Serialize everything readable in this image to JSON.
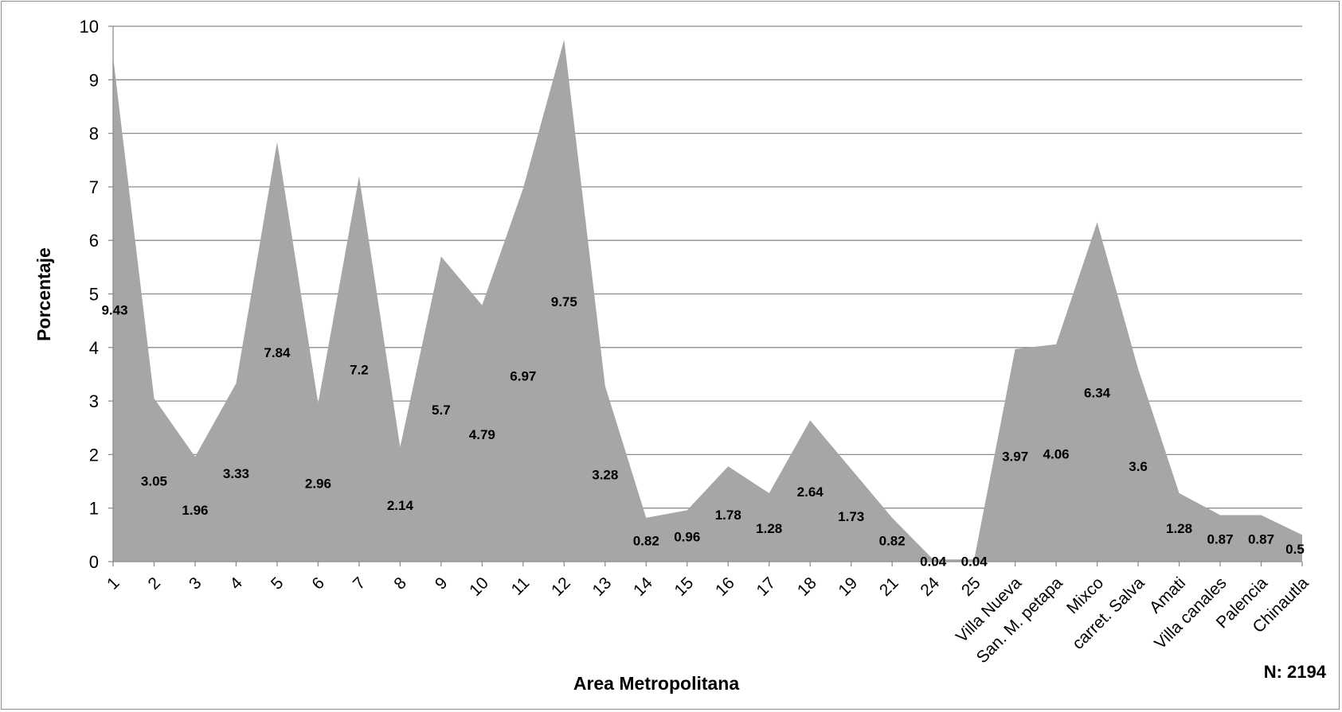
{
  "chart_data": {
    "type": "area",
    "title": "",
    "xlabel": "Area Metropolitana",
    "ylabel": "Porcentaje",
    "ylim": [
      0,
      10
    ],
    "yticks": [
      0,
      1,
      2,
      3,
      4,
      5,
      6,
      7,
      8,
      9,
      10
    ],
    "grid": true,
    "legend": "none",
    "fill_color": "#a6a6a6",
    "note": "N: 2194",
    "categories": [
      "1",
      "2",
      "3",
      "4",
      "5",
      "6",
      "7",
      "8",
      "9",
      "10",
      "11",
      "12",
      "13",
      "14",
      "15",
      "16",
      "17",
      "18",
      "19",
      "21",
      "24",
      "25",
      "Villa Nueva",
      "San. M. petapa",
      "Mixco",
      "carret. Salva",
      "Amati",
      "Villa canales",
      "Palencia",
      "Chinautla"
    ],
    "values": [
      9.43,
      3.05,
      1.96,
      3.33,
      7.84,
      2.96,
      7.2,
      2.14,
      5.7,
      4.79,
      6.97,
      9.75,
      3.28,
      0.82,
      0.96,
      1.78,
      1.28,
      2.64,
      1.73,
      0.82,
      0.04,
      0.04,
      3.97,
      4.06,
      6.34,
      3.6,
      1.28,
      0.87,
      0.87,
      0.5
    ],
    "data_labels": [
      "9.43",
      "3.05",
      "1.96",
      "3.33",
      "7.84",
      "2.96",
      "7.2",
      "2.14",
      "5.7",
      "4.79",
      "6.97",
      "9.75",
      "3.28",
      "0.82",
      "0.96",
      "1.78",
      "1.28",
      "2.64",
      "1.73",
      "0.82",
      "0.04",
      "0.04",
      "3.97",
      "4.06",
      "6.34",
      "3.6",
      "1.28",
      "0.87",
      "0.87",
      "0.5"
    ]
  }
}
